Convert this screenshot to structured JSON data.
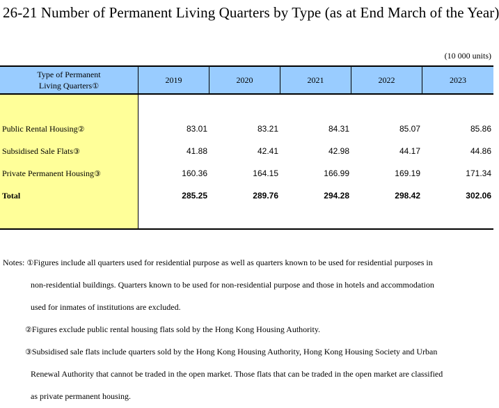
{
  "title": "26-21  Number of Permanent Living Quarters by Type (as at End March of the Year)",
  "unit": "(10 000 units)",
  "table": {
    "header_label_line1": "Type of Permanent",
    "header_label_line2": "Living Quarters",
    "header_label_mark": "①",
    "years": [
      "2019",
      "2020",
      "2021",
      "2022",
      "2023"
    ],
    "rows": [
      {
        "label": "Public Rental Housing",
        "mark": "②",
        "values": [
          "83.01",
          "83.21",
          "84.31",
          "85.07",
          "85.86"
        ]
      },
      {
        "label": "Subsidised Sale Flats",
        "mark": "③",
        "values": [
          "41.88",
          "42.41",
          "42.98",
          "44.17",
          "44.86"
        ]
      },
      {
        "label": "Private Permanent Housing",
        "mark": "③",
        "values": [
          "160.36",
          "164.15",
          "166.99",
          "169.19",
          "171.34"
        ]
      },
      {
        "label": "Total",
        "mark": "",
        "values": [
          "285.25",
          "289.76",
          "294.28",
          "298.42",
          "302.06"
        ]
      }
    ]
  },
  "notes": {
    "prefix": "Notes:",
    "note1_mark": "①",
    "note1_line1": "Figures include all quarters used for residential purpose as well as quarters known to be used for residential purposes in",
    "note1_line2": "non-residential buildings. Quarters known to be used for non-residential purpose and those in hotels and accommodation",
    "note1_line3": "used for inmates of institutions are excluded.",
    "note2_mark": "②",
    "note2_line1": "Figures exclude public rental housing flats sold by the Hong Kong Housing Authority.",
    "note3_mark": "③",
    "note3_line1": "Subsidised sale flats include quarters sold by the Hong Kong Housing Authority, Hong Kong Housing Society and Urban",
    "note3_line2": "Renewal Authority that cannot be traded in the open market. Those flats that can be traded in the open market are classified",
    "note3_line3": "as private permanent housing."
  }
}
